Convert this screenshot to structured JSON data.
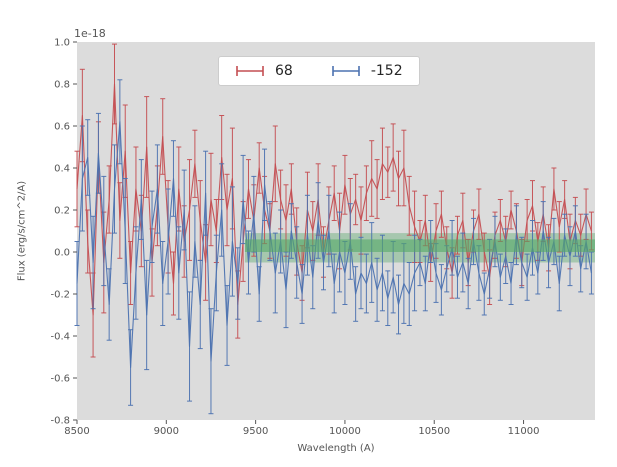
{
  "figure": {
    "background": "#ffffff",
    "plot_background": "#dcdcdc",
    "tick_color": "#555555",
    "text_color": "#555555"
  },
  "chart_data": {
    "type": "line",
    "subtype": "errorbar",
    "title": "",
    "xlabel": "Wavelength (A)",
    "ylabel": "Flux (erg/s/cm^2/A)",
    "y_offset_label": "1e-18",
    "xlim": [
      8500,
      11400
    ],
    "ylim": [
      -0.8,
      1.0
    ],
    "xticks": [
      8500,
      9000,
      9500,
      10000,
      10500,
      11000
    ],
    "yticks": [
      -0.8,
      -0.6,
      -0.4,
      -0.2,
      0.0,
      0.2,
      0.4,
      0.6,
      0.8,
      1.0
    ],
    "grid": false,
    "legend_position": "upper center",
    "band": {
      "x_start": 9440,
      "x_end": 11400,
      "y_low": -0.05,
      "y_high": 0.09,
      "inner_y_low": 0.0,
      "inner_y_high": 0.06,
      "color": "#55A868",
      "alpha": 0.4,
      "inner_alpha": 0.6
    },
    "x": [
      8500,
      8530,
      8560,
      8590,
      8620,
      8650,
      8680,
      8710,
      8740,
      8770,
      8800,
      8830,
      8860,
      8890,
      8920,
      8950,
      8980,
      9010,
      9040,
      9070,
      9100,
      9130,
      9160,
      9190,
      9220,
      9250,
      9280,
      9310,
      9340,
      9370,
      9400,
      9430,
      9460,
      9490,
      9520,
      9550,
      9580,
      9610,
      9640,
      9670,
      9700,
      9730,
      9760,
      9790,
      9820,
      9850,
      9880,
      9910,
      9940,
      9970,
      10000,
      10030,
      10060,
      10090,
      10120,
      10150,
      10180,
      10210,
      10240,
      10270,
      10300,
      10330,
      10360,
      10390,
      10420,
      10450,
      10480,
      10510,
      10540,
      10570,
      10600,
      10630,
      10660,
      10690,
      10720,
      10750,
      10780,
      10810,
      10840,
      10870,
      10900,
      10930,
      10960,
      10990,
      11020,
      11050,
      11080,
      11110,
      11140,
      11170,
      11200,
      11230,
      11260,
      11290,
      11320,
      11350,
      11380
    ],
    "series": [
      {
        "name": "68",
        "color": "#C44E52",
        "values": [
          0.3,
          0.65,
          0.05,
          -0.3,
          0.45,
          -0.05,
          0.25,
          0.8,
          0.15,
          0.48,
          -0.1,
          0.3,
          0.1,
          0.5,
          -0.05,
          0.22,
          0.55,
          0.12,
          -0.15,
          0.3,
          0.05,
          0.2,
          0.42,
          0.15,
          -0.05,
          0.25,
          0.1,
          0.45,
          0.2,
          0.35,
          -0.25,
          0.05,
          0.3,
          0.15,
          0.4,
          0.2,
          0.1,
          0.42,
          0.25,
          0.15,
          0.3,
          0.05,
          -0.1,
          0.2,
          0.1,
          0.25,
          0.0,
          0.15,
          0.28,
          0.1,
          0.32,
          0.18,
          0.25,
          0.15,
          0.28,
          0.35,
          0.3,
          0.42,
          0.38,
          0.45,
          0.35,
          0.4,
          0.22,
          0.12,
          0.05,
          0.15,
          -0.05,
          0.1,
          0.18,
          0.02,
          -0.1,
          0.08,
          0.15,
          -0.05,
          0.1,
          0.18,
          0.0,
          -0.12,
          0.08,
          0.15,
          0.05,
          0.2,
          0.1,
          -0.05,
          0.15,
          0.22,
          0.05,
          0.18,
          0.02,
          0.3,
          0.12,
          0.25,
          0.05,
          0.15,
          0.08,
          0.18,
          0.1
        ],
        "errors": [
          0.18,
          0.22,
          0.15,
          0.2,
          0.17,
          0.24,
          0.16,
          0.19,
          0.18,
          0.22,
          0.15,
          0.2,
          0.17,
          0.24,
          0.16,
          0.19,
          0.18,
          0.22,
          0.15,
          0.2,
          0.17,
          0.24,
          0.16,
          0.19,
          0.18,
          0.22,
          0.15,
          0.2,
          0.17,
          0.24,
          0.16,
          0.19,
          0.14,
          0.17,
          0.12,
          0.16,
          0.13,
          0.18,
          0.14,
          0.17,
          0.12,
          0.16,
          0.13,
          0.18,
          0.14,
          0.17,
          0.12,
          0.16,
          0.13,
          0.18,
          0.14,
          0.17,
          0.12,
          0.16,
          0.13,
          0.18,
          0.14,
          0.17,
          0.12,
          0.16,
          0.13,
          0.18,
          0.14,
          0.17,
          0.1,
          0.12,
          0.09,
          0.13,
          0.11,
          0.1,
          0.12,
          0.09,
          0.13,
          0.11,
          0.1,
          0.12,
          0.09,
          0.13,
          0.11,
          0.1,
          0.12,
          0.09,
          0.13,
          0.11,
          0.1,
          0.12,
          0.09,
          0.13,
          0.11,
          0.1,
          0.12,
          0.09,
          0.13,
          0.11,
          0.1,
          0.12,
          0.09
        ]
      },
      {
        "name": "-152",
        "color": "#4C72B0",
        "values": [
          -0.15,
          0.35,
          0.45,
          -0.05,
          0.47,
          0.1,
          -0.25,
          0.3,
          0.62,
          0.1,
          -0.55,
          -0.1,
          0.25,
          -0.3,
          0.12,
          0.3,
          -0.15,
          0.05,
          0.35,
          -0.1,
          0.2,
          -0.45,
          0.05,
          -0.25,
          0.28,
          -0.52,
          -0.1,
          0.2,
          -0.35,
          0.05,
          -0.15,
          0.25,
          -0.05,
          0.18,
          -0.2,
          0.32,
          0.1,
          -0.1,
          0.05,
          -0.18,
          0.1,
          -0.05,
          -0.2,
          0.08,
          -0.12,
          0.15,
          -0.05,
          0.1,
          -0.15,
          0.0,
          -0.1,
          0.05,
          -0.2,
          -0.1,
          -0.15,
          -0.05,
          -0.18,
          -0.1,
          -0.22,
          -0.12,
          -0.25,
          -0.15,
          -0.2,
          -0.1,
          -0.05,
          -0.15,
          0.05,
          -0.1,
          -0.18,
          -0.08,
          0.02,
          -0.12,
          -0.05,
          -0.15,
          0.05,
          -0.1,
          -0.2,
          -0.08,
          0.05,
          -0.12,
          -0.02,
          -0.15,
          0.08,
          -0.05,
          -0.12,
          0.02,
          -0.1,
          0.1,
          -0.05,
          0.05,
          -0.15,
          0.08,
          -0.02,
          0.1,
          -0.08,
          0.05,
          -0.1
        ],
        "errors": [
          0.2,
          0.25,
          0.18,
          0.22,
          0.19,
          0.26,
          0.17,
          0.21,
          0.2,
          0.25,
          0.18,
          0.22,
          0.19,
          0.26,
          0.17,
          0.21,
          0.2,
          0.25,
          0.18,
          0.22,
          0.19,
          0.26,
          0.17,
          0.21,
          0.2,
          0.25,
          0.18,
          0.22,
          0.19,
          0.26,
          0.17,
          0.21,
          0.15,
          0.18,
          0.13,
          0.17,
          0.14,
          0.19,
          0.15,
          0.18,
          0.13,
          0.17,
          0.14,
          0.19,
          0.15,
          0.18,
          0.13,
          0.17,
          0.14,
          0.19,
          0.15,
          0.18,
          0.13,
          0.17,
          0.14,
          0.19,
          0.15,
          0.18,
          0.13,
          0.17,
          0.14,
          0.19,
          0.15,
          0.18,
          0.11,
          0.13,
          0.1,
          0.14,
          0.12,
          0.11,
          0.13,
          0.1,
          0.14,
          0.12,
          0.11,
          0.13,
          0.1,
          0.14,
          0.12,
          0.11,
          0.13,
          0.1,
          0.14,
          0.12,
          0.11,
          0.13,
          0.1,
          0.14,
          0.12,
          0.11,
          0.13,
          0.1,
          0.14,
          0.12,
          0.11,
          0.13,
          0.1
        ]
      }
    ]
  }
}
